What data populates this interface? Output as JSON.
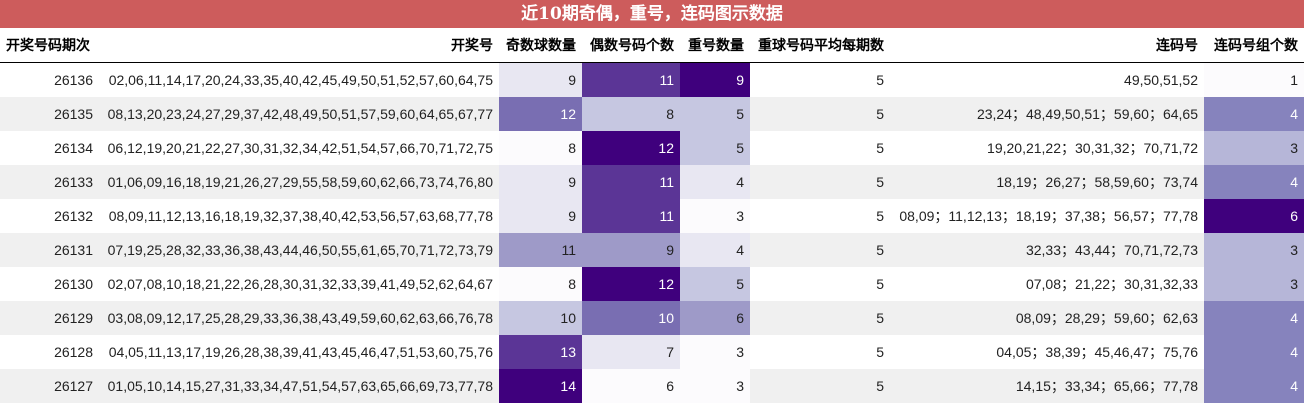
{
  "chart_data": {
    "type": "table",
    "title": "近10期奇偶，重号，连码图示数据",
    "columns": [
      "开奖号码期次",
      "开奖号",
      "奇数球数量",
      "偶数号码个数",
      "重号数量",
      "重球号码平均每期数",
      "连码号",
      "连码号组个数"
    ],
    "rows": [
      [
        "26136",
        "02,06,11,14,17,20,24,33,35,40,42,45,49,50,51,52,57,60,64,75",
        9,
        11,
        9,
        5,
        "49,50,51,52",
        1
      ],
      [
        "26135",
        "08,13,20,23,24,27,29,37,42,48,49,50,51,57,59,60,64,65,67,77",
        12,
        8,
        5,
        5,
        "23,24；48,49,50,51；59,60；64,65",
        4
      ],
      [
        "26134",
        "06,12,19,20,21,22,27,30,31,32,34,42,51,54,57,66,70,71,72,75",
        8,
        12,
        5,
        5,
        "19,20,21,22；30,31,32；70,71,72",
        3
      ],
      [
        "26133",
        "01,06,09,16,18,19,21,26,27,29,55,58,59,60,62,66,73,74,76,80",
        9,
        11,
        4,
        5,
        "18,19；26,27；58,59,60；73,74",
        4
      ],
      [
        "26132",
        "08,09,11,12,13,16,18,19,32,37,38,40,42,53,56,57,63,68,77,78",
        9,
        11,
        3,
        5,
        "08,09；11,12,13；18,19；37,38；56,57；77,78",
        6
      ],
      [
        "26131",
        "07,19,25,28,32,33,36,38,43,44,46,50,55,61,65,70,71,72,73,79",
        11,
        9,
        4,
        5,
        "32,33；43,44；70,71,72,73",
        3
      ],
      [
        "26130",
        "02,07,08,10,18,21,22,26,28,30,31,32,33,39,41,49,52,62,64,67",
        8,
        12,
        5,
        5,
        "07,08；21,22；30,31,32,33",
        3
      ],
      [
        "26129",
        "03,08,09,12,17,25,28,29,33,36,38,43,49,59,60,62,63,66,76,78",
        10,
        10,
        6,
        5,
        "08,09；28,29；59,60；62,63",
        4
      ],
      [
        "26128",
        "04,05,11,13,17,19,26,28,38,39,41,43,45,46,47,51,53,60,75,76",
        13,
        7,
        3,
        5,
        "04,05；38,39；45,46,47；75,76",
        4
      ],
      [
        "26127",
        "01,05,10,14,15,27,31,33,34,47,51,54,57,63,65,66,69,73,77,78",
        14,
        6,
        3,
        5,
        "14,15；33,34；65,66；77,78",
        4
      ]
    ],
    "heatmap_columns": [
      2,
      3,
      4,
      7
    ],
    "colormap": "Purples"
  }
}
